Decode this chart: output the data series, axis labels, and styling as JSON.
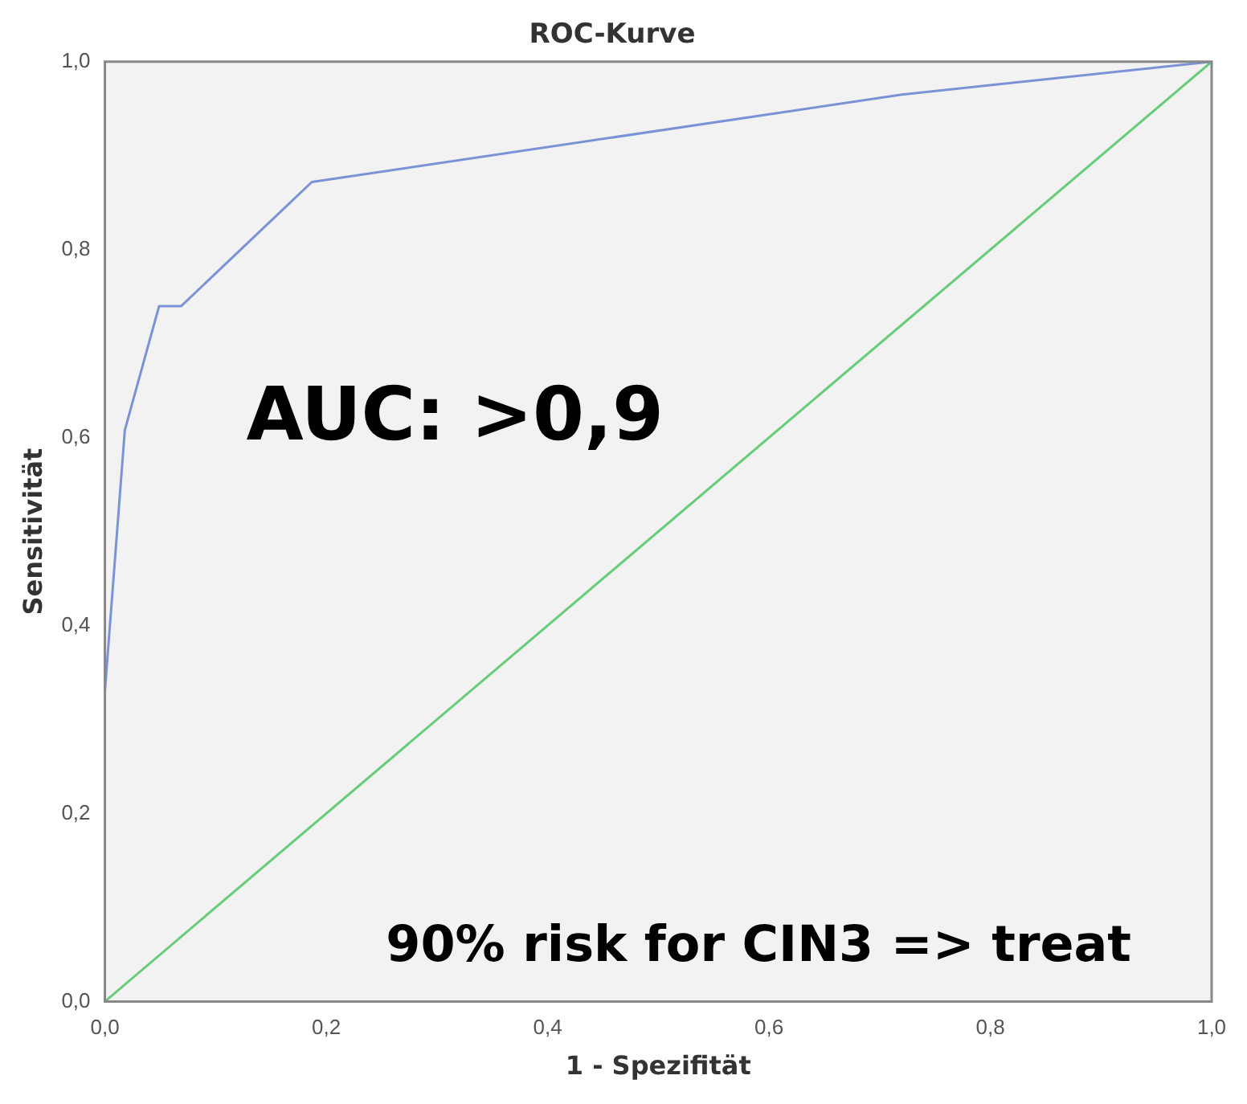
{
  "chart_data": {
    "type": "line",
    "title": "ROC-Kurve",
    "xlabel": "1 - Spezifität",
    "ylabel": "Sensitivität",
    "xlim": [
      0,
      1
    ],
    "ylim": [
      0,
      1
    ],
    "xticks": [
      {
        "value": 0,
        "label": "0,0"
      },
      {
        "value": 0.2,
        "label": "0,2"
      },
      {
        "value": 0.4,
        "label": "0,4"
      },
      {
        "value": 0.6,
        "label": "0,6"
      },
      {
        "value": 0.8,
        "label": "0,8"
      },
      {
        "value": 1,
        "label": "1,0"
      }
    ],
    "yticks": [
      {
        "value": 0,
        "label": "0,0"
      },
      {
        "value": 0.2,
        "label": "0,2"
      },
      {
        "value": 0.4,
        "label": "0,4"
      },
      {
        "value": 0.6,
        "label": "0,6"
      },
      {
        "value": 0.8,
        "label": "0,8"
      },
      {
        "value": 1,
        "label": "1,0"
      }
    ],
    "grid": false,
    "legend": false,
    "marker": "none",
    "line_style": "solid",
    "series": [
      {
        "color": "#7b93d6",
        "x": [
          0,
          0.018,
          0.049,
          0.069,
          0.187,
          0.72,
          1
        ],
        "values": [
          0.33,
          0.608,
          0.74,
          0.74,
          0.872,
          0.965,
          1
        ]
      },
      {
        "color": "#66cc77",
        "x": [
          0,
          1
        ],
        "values": [
          0,
          1
        ]
      }
    ],
    "annotations": [
      "AUC: >0,9",
      "90% risk for CIN3 => treat"
    ]
  }
}
